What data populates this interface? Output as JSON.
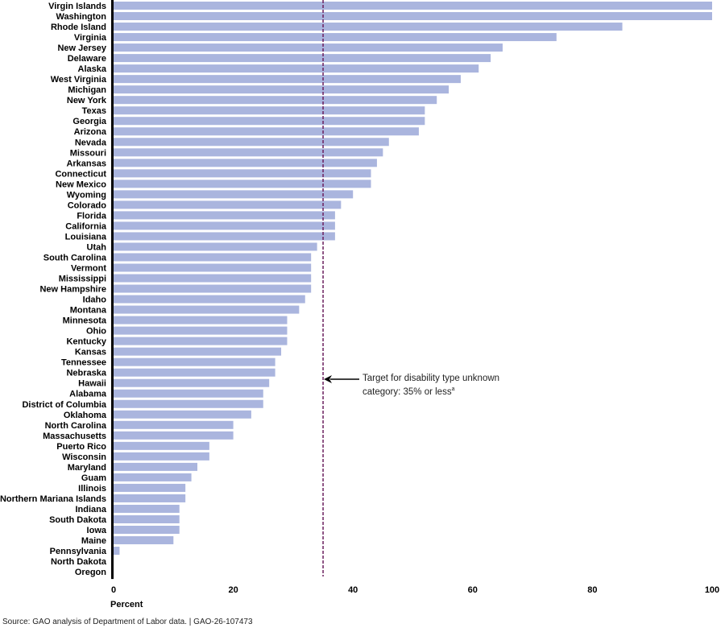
{
  "chart_data": {
    "type": "bar",
    "orientation": "horizontal",
    "categories": [
      "Virgin Islands",
      "Washington",
      "Rhode Island",
      "Virginia",
      "New Jersey",
      "Delaware",
      "Alaska",
      "West Virginia",
      "Michigan",
      "New York",
      "Texas",
      "Georgia",
      "Arizona",
      "Nevada",
      "Missouri",
      "Arkansas",
      "Connecticut",
      "New Mexico",
      "Wyoming",
      "Colorado",
      "Florida",
      "California",
      "Louisiana",
      "Utah",
      "South Carolina",
      "Vermont",
      "Mississippi",
      "New Hampshire",
      "Idaho",
      "Montana",
      "Minnesota",
      "Ohio",
      "Kentucky",
      "Kansas",
      "Tennessee",
      "Nebraska",
      "Hawaii",
      "Alabama",
      "District of Columbia",
      "Oklahoma",
      "North Carolina",
      "Massachusetts",
      "Puerto Rico",
      "Wisconsin",
      "Maryland",
      "Guam",
      "Illinois",
      "Northern Mariana Islands",
      "Indiana",
      "South Dakota",
      "Iowa",
      "Maine",
      "Pennsylvania",
      "North Dakota",
      "Oregon"
    ],
    "values": [
      100,
      100,
      85,
      74,
      65,
      63,
      61,
      58,
      56,
      54,
      52,
      52,
      51,
      46,
      45,
      44,
      43,
      43,
      40,
      38,
      37,
      37,
      37,
      34,
      33,
      33,
      33,
      33,
      32,
      31,
      29,
      29,
      29,
      28,
      27,
      27,
      26,
      25,
      25,
      23,
      20,
      20,
      16,
      16,
      14,
      13,
      12,
      12,
      11,
      11,
      11,
      10,
      1,
      0,
      0
    ],
    "xlabel": "Percent",
    "xlim": [
      0,
      100
    ],
    "xticks": [
      "0",
      "20",
      "40",
      "60",
      "80",
      "100"
    ],
    "grid": false,
    "bar_color": "#aab5de",
    "reference_line": {
      "value": 35,
      "color": "#6b1f5e",
      "style": "dashed",
      "annotation": "Target for disability type unknown category: 35% or less",
      "annotation_line1": "Target for disability type unknown",
      "annotation_line2": "category: 35% or less",
      "annotation_note": "a"
    }
  },
  "source": "Source: GAO analysis of Department of Labor data.  |  GAO-26-107473"
}
